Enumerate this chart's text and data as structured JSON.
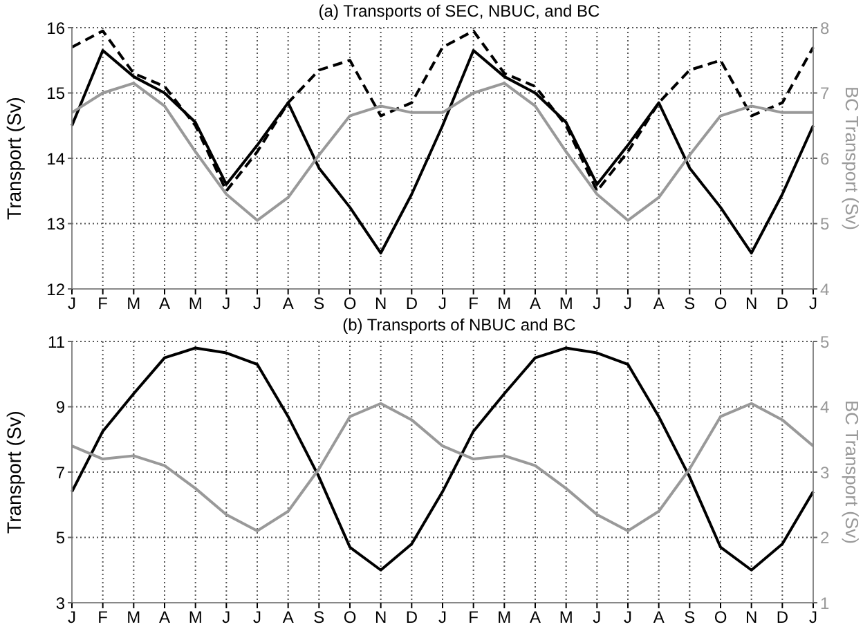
{
  "chart_data": [
    {
      "type": "line",
      "title": "(a) Transports of SEC, NBUC, and BC",
      "ylabel": "Transport (Sv)",
      "y2label": "BC Transport (Sv)",
      "categories": [
        "J",
        "F",
        "M",
        "A",
        "M",
        "J",
        "J",
        "A",
        "S",
        "O",
        "N",
        "D",
        "J",
        "F",
        "M",
        "A",
        "M",
        "J",
        "J",
        "A",
        "S",
        "O",
        "N",
        "D",
        "J"
      ],
      "series": [
        {
          "color": "#000000",
          "line_style": "dashed",
          "values": [
            15.7,
            15.95,
            15.3,
            15.1,
            14.5,
            13.5,
            14.1,
            14.85,
            15.35,
            15.5,
            14.65,
            14.85,
            15.7,
            15.95,
            15.3,
            15.1,
            14.5,
            13.5,
            14.1,
            14.85,
            15.35,
            15.5,
            14.65,
            14.85,
            15.7
          ]
        },
        {
          "color": "#000000",
          "line_style": "solid",
          "values": [
            14.5,
            15.65,
            15.25,
            15.0,
            14.55,
            13.6,
            14.2,
            14.85,
            13.85,
            13.25,
            12.55,
            13.45,
            14.5,
            15.65,
            15.25,
            15.0,
            14.55,
            13.6,
            14.2,
            14.85,
            13.85,
            13.25,
            12.55,
            13.45,
            14.5
          ]
        },
        {
          "color": "#999999",
          "line_style": "solid",
          "axis": "y2",
          "values": [
            6.7,
            7.0,
            7.15,
            6.8,
            6.1,
            5.45,
            5.05,
            5.4,
            6.05,
            6.65,
            6.8,
            6.7,
            6.7,
            7.0,
            7.15,
            6.8,
            6.1,
            5.45,
            5.05,
            5.4,
            6.05,
            6.65,
            6.8,
            6.7,
            6.7
          ]
        }
      ],
      "ylim": [
        12,
        16
      ],
      "yticks": [
        12,
        13,
        14,
        15,
        16
      ],
      "y2lim": [
        4,
        8
      ],
      "y2ticks": [
        4,
        5,
        6,
        7,
        8
      ],
      "grid": true
    },
    {
      "type": "line",
      "title": "(b) Transports of NBUC and BC",
      "ylabel": "Transport (Sv)",
      "y2label": "BC Transport (Sv)",
      "categories": [
        "J",
        "F",
        "M",
        "A",
        "M",
        "J",
        "J",
        "A",
        "S",
        "O",
        "N",
        "D",
        "J",
        "F",
        "M",
        "A",
        "M",
        "J",
        "J",
        "A",
        "S",
        "O",
        "N",
        "D",
        "J"
      ],
      "series": [
        {
          "color": "#000000",
          "line_style": "solid",
          "values": [
            6.4,
            8.25,
            9.4,
            10.5,
            10.8,
            10.65,
            10.3,
            8.7,
            6.85,
            4.7,
            4.0,
            4.8,
            6.4,
            8.25,
            9.4,
            10.5,
            10.8,
            10.65,
            10.3,
            8.7,
            6.85,
            4.7,
            4.0,
            4.8,
            6.4
          ]
        },
        {
          "color": "#999999",
          "line_style": "solid",
          "axis": "y2",
          "values": [
            3.4,
            3.2,
            3.25,
            3.1,
            2.75,
            2.35,
            2.1,
            2.4,
            3.05,
            3.85,
            4.05,
            3.8,
            3.4,
            3.2,
            3.25,
            3.1,
            2.75,
            2.35,
            2.1,
            2.4,
            3.05,
            3.85,
            4.05,
            3.8,
            3.4
          ]
        }
      ],
      "ylim": [
        3,
        11
      ],
      "yticks": [
        3,
        5,
        7,
        9,
        11
      ],
      "y2lim": [
        1,
        5
      ],
      "y2ticks": [
        1,
        2,
        3,
        4,
        5
      ],
      "grid": true
    }
  ]
}
